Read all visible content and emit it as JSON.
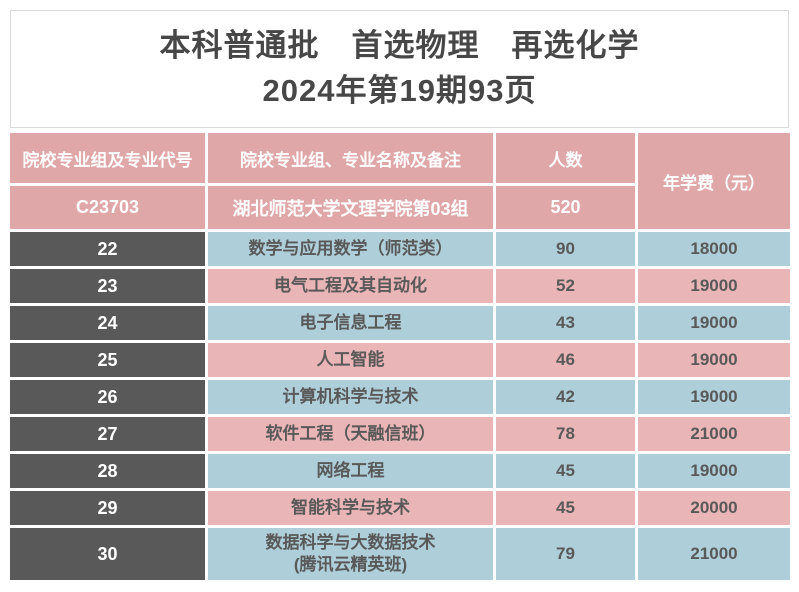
{
  "title": {
    "line1": "本科普通批　首选物理　再选化学",
    "line2": "2024年第19期93页"
  },
  "table": {
    "header": {
      "col_code": "院校专业组及专业代号",
      "col_name": "院校专业组、专业名称及备注",
      "col_count": "人数",
      "col_fee": "年学费（元）"
    },
    "group": {
      "code": "C23703",
      "name": "湖北师范大学文理学院第03组",
      "count": "520"
    },
    "rows": [
      {
        "code": "22",
        "name": "数学与应用数学（师范类）",
        "count": "90",
        "fee": "18000"
      },
      {
        "code": "23",
        "name": "电气工程及其自动化",
        "count": "52",
        "fee": "19000"
      },
      {
        "code": "24",
        "name": "电子信息工程",
        "count": "43",
        "fee": "19000"
      },
      {
        "code": "25",
        "name": "人工智能",
        "count": "46",
        "fee": "19000"
      },
      {
        "code": "26",
        "name": "计算机科学与技术",
        "count": "42",
        "fee": "19000"
      },
      {
        "code": "27",
        "name": "软件工程（天融信班）",
        "count": "78",
        "fee": "21000"
      },
      {
        "code": "28",
        "name": "网络工程",
        "count": "45",
        "fee": "19000"
      },
      {
        "code": "29",
        "name": "智能科学与技术",
        "count": "45",
        "fee": "20000"
      },
      {
        "code": "30",
        "name": "数据科学与大数据技术\n(腾讯云精英班)",
        "count": "79",
        "fee": "21000"
      }
    ]
  },
  "colors": {
    "header_pink": "#e0a7a8",
    "row_pink": "#eab5b6",
    "row_blue": "#aecfda",
    "dark_cell": "#595959",
    "text_dark": "#595959",
    "title_text": "#474747",
    "title_border": "#d9d9d9"
  }
}
